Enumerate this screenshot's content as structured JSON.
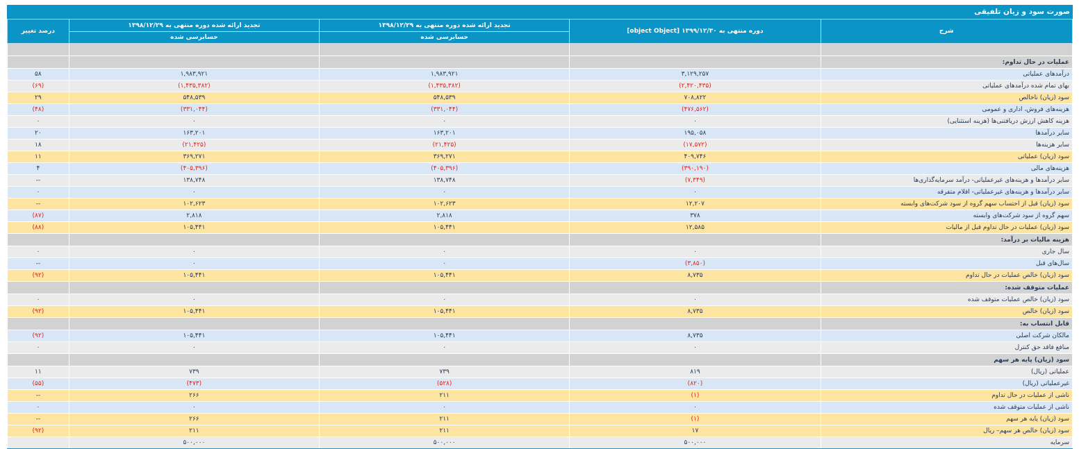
{
  "title": "صورت سود و زیان تلفیقی",
  "headers": {
    "desc": "شرح",
    "current": "دوره منتهی به ۱۳۹۹/۱۲/۳۰ [object Object]",
    "prev1": "تجدید ارائه شده دوره منتهی به ۱۳۹۸/۱۲/۲۹",
    "prev2": "تجدید ارائه شده دوره منتهی به ۱۳۹۸/۱۲/۲۹",
    "change": "درصد تغییر",
    "audited1": "حسابرسی شده",
    "audited2": "حسابرسی شده"
  },
  "rows": [
    {
      "type": "section",
      "label": "",
      "cur": "",
      "p1": "",
      "p2": "",
      "pct": ""
    },
    {
      "type": "section",
      "label": "عملیات در حال تداوم:",
      "cur": "",
      "p1": "",
      "p2": "",
      "pct": ""
    },
    {
      "type": "blue",
      "label": "درآمدهای عملیاتی",
      "cur": "۳,۱۲۹,۲۵۷",
      "p1": "۱,۹۸۳,۹۲۱",
      "p2": "۱,۹۸۳,۹۲۱",
      "pct": "۵۸"
    },
    {
      "type": "gray",
      "label": "بهای تمام شده درآمدهای عملیاتی",
      "cur": "(۲,۴۲۰,۴۳۵)",
      "p1": "(۱,۴۳۵,۳۸۲)",
      "p2": "(۱,۴۳۵,۳۸۲)",
      "pct": "(۶۹)"
    },
    {
      "type": "gold",
      "label": "سود (زیان) ناخالص",
      "cur": "۷۰۸,۸۲۲",
      "p1": "۵۴۸,۵۳۹",
      "p2": "۵۴۸,۵۳۹",
      "pct": "۲۹"
    },
    {
      "type": "blue",
      "label": "هزینه‌های فروش، اداری و عمومی",
      "cur": "(۴۷۶,۵۶۲)",
      "p1": "(۳۳۱,۰۴۴)",
      "p2": "(۳۳۱,۰۴۴)",
      "pct": "(۴۸)"
    },
    {
      "type": "gray",
      "label": "هزینه کاهش ارزش دریافتنی‌ها (هزینه استثنایی)",
      "cur": "۰",
      "p1": "۰",
      "p2": "۰",
      "pct": "۰"
    },
    {
      "type": "blue",
      "label": "سایر درآمدها",
      "cur": "۱۹۵,۰۵۸",
      "p1": "۱۶۳,۲۰۱",
      "p2": "۱۶۳,۲۰۱",
      "pct": "۲۰"
    },
    {
      "type": "gray",
      "label": "سایر هزینه‌ها",
      "cur": "(۱۷,۵۷۲)",
      "p1": "(۲۱,۴۲۵)",
      "p2": "(۲۱,۴۲۵)",
      "pct": "۱۸"
    },
    {
      "type": "gold",
      "label": "سود (زیان) عملیاتی",
      "cur": "۴۰۹,۷۴۶",
      "p1": "۳۶۹,۲۷۱",
      "p2": "۳۶۹,۲۷۱",
      "pct": "۱۱"
    },
    {
      "type": "blue",
      "label": "هزینه‌های مالی",
      "cur": "(۳۹۰,۱۹۰)",
      "p1": "(۴۰۵,۳۹۶)",
      "p2": "(۴۰۵,۳۹۶)",
      "pct": "۴"
    },
    {
      "type": "gray",
      "label": "سایر درآمدها و هزینه‌های غیرعملیاتی- درآمد سرمایه‌گذاری‌ها",
      "cur": "(۷,۳۴۹)",
      "p1": "۱۳۸,۷۴۸",
      "p2": "۱۳۸,۷۴۸",
      "pct": "--"
    },
    {
      "type": "blue",
      "label": "سایر درآمدها و هزینه‌های غیرعملیاتی- اقلام متفرقه",
      "cur": "۰",
      "p1": "۰",
      "p2": "۰",
      "pct": "۰"
    },
    {
      "type": "gold",
      "label": "سود (زیان) قبل از احتساب سهم گروه از سود شرکت‌های وابسته",
      "cur": "۱۲,۲۰۷",
      "p1": "۱۰۲,۶۲۳",
      "p2": "۱۰۲,۶۲۳",
      "pct": "--"
    },
    {
      "type": "blue",
      "label": "سهم گروه از سود شرکت‌های وابسته",
      "cur": "۳۷۸",
      "p1": "۲,۸۱۸",
      "p2": "۲,۸۱۸",
      "pct": "(۸۷)"
    },
    {
      "type": "gold",
      "label": "سود (زیان) عملیات در حال تداوم قبل از مالیات",
      "cur": "۱۲,۵۸۵",
      "p1": "۱۰۵,۴۴۱",
      "p2": "۱۰۵,۴۴۱",
      "pct": "(۸۸)"
    },
    {
      "type": "section",
      "label": "هزینه مالیات بر درآمد:",
      "cur": "",
      "p1": "",
      "p2": "",
      "pct": ""
    },
    {
      "type": "gray",
      "label": "سال جاری",
      "cur": "۰",
      "p1": "۰",
      "p2": "۰",
      "pct": "۰"
    },
    {
      "type": "blue",
      "label": "سال‌های قبل",
      "cur": "(۳,۸۵۰)",
      "p1": "۰",
      "p2": "۰",
      "pct": "--"
    },
    {
      "type": "gold",
      "label": "سود (زیان) خالص عملیات در حال تداوم",
      "cur": "۸,۷۳۵",
      "p1": "۱۰۵,۴۴۱",
      "p2": "۱۰۵,۴۴۱",
      "pct": "(۹۲)"
    },
    {
      "type": "section",
      "label": "عملیات متوقف شده:",
      "cur": "",
      "p1": "",
      "p2": "",
      "pct": ""
    },
    {
      "type": "gray",
      "label": "سود (زیان) خالص عملیات متوقف شده",
      "cur": "۰",
      "p1": "۰",
      "p2": "۰",
      "pct": "۰"
    },
    {
      "type": "gold",
      "label": "سود (زیان) خالص",
      "cur": "۸,۷۳۵",
      "p1": "۱۰۵,۴۴۱",
      "p2": "۱۰۵,۴۴۱",
      "pct": "(۹۲)"
    },
    {
      "type": "section",
      "label": "قابل انتساب به:",
      "cur": "",
      "p1": "",
      "p2": "",
      "pct": ""
    },
    {
      "type": "blue",
      "label": "مالکان شرکت اصلی",
      "cur": "۸,۷۳۵",
      "p1": "۱۰۵,۴۴۱",
      "p2": "۱۰۵,۴۴۱",
      "pct": "(۹۲)"
    },
    {
      "type": "gray",
      "label": "منافع فاقد حق کنترل",
      "cur": "۰",
      "p1": "۰",
      "p2": "۰",
      "pct": "۰"
    },
    {
      "type": "section",
      "label": "سود (زیان) پایه هر سهم",
      "cur": "",
      "p1": "",
      "p2": "",
      "pct": ""
    },
    {
      "type": "gray",
      "label": "عملیاتی (ریال)",
      "cur": "۸۱۹",
      "p1": "۷۳۹",
      "p2": "۷۳۹",
      "pct": "۱۱"
    },
    {
      "type": "blue",
      "label": "غیرعملیاتی (ریال)",
      "cur": "(۸۲۰)",
      "p1": "(۵۲۸)",
      "p2": "(۴۷۳)",
      "pct": "(۵۵)"
    },
    {
      "type": "gold",
      "label": "ناشی از عملیات در حال تداوم",
      "cur": "(۱)",
      "p1": "۲۱۱",
      "p2": "۲۶۶",
      "pct": "--"
    },
    {
      "type": "blue",
      "label": "ناشی از عملیات متوقف شده",
      "cur": "۰",
      "p1": "۰",
      "p2": "۰",
      "pct": "۰"
    },
    {
      "type": "gold",
      "label": "سود (زیان) پایه هر سهم",
      "cur": "(۱)",
      "p1": "۲۱۱",
      "p2": "۲۶۶",
      "pct": "--"
    },
    {
      "type": "gold",
      "label": "سود (زیان) خالص هر سهم– ریال",
      "cur": "۱۷",
      "p1": "۲۱۱",
      "p2": "۲۱۱",
      "pct": "(۹۲)"
    },
    {
      "type": "gray",
      "label": "سرمایه",
      "cur": "۵۰۰,۰۰۰",
      "p1": "۵۰۰,۰۰۰",
      "p2": "۵۰۰,۰۰۰",
      "pct": ""
    }
  ]
}
